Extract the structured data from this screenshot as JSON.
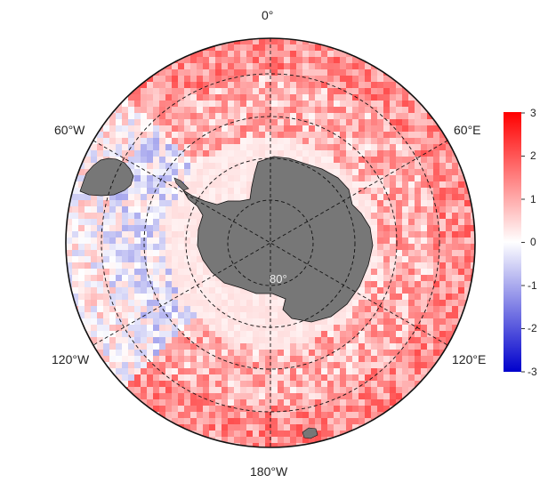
{
  "map": {
    "projection": "south-polar-stereographic",
    "ocean_field": "gridded anomaly (diverging blue-white-red)",
    "land_color": "#777777",
    "graticule": "dashed",
    "longitude_labels": [
      {
        "key": "lon_0",
        "text": "0°"
      },
      {
        "key": "lon_60e",
        "text": "60°E"
      },
      {
        "key": "lon_120e",
        "text": "120°E"
      },
      {
        "key": "lon_180",
        "text": "180°W"
      },
      {
        "key": "lon_120w",
        "text": "120°W"
      },
      {
        "key": "lon_60w",
        "text": "60°W"
      }
    ],
    "latitude_label": "80°"
  },
  "colorbar": {
    "min": -3,
    "max": 3,
    "ticks": [
      "3",
      "2",
      "1",
      "0",
      "-1",
      "-2",
      "-3"
    ],
    "colors": {
      "low": "#0000cc",
      "mid": "#ffffff",
      "high": "#ff0000"
    }
  }
}
